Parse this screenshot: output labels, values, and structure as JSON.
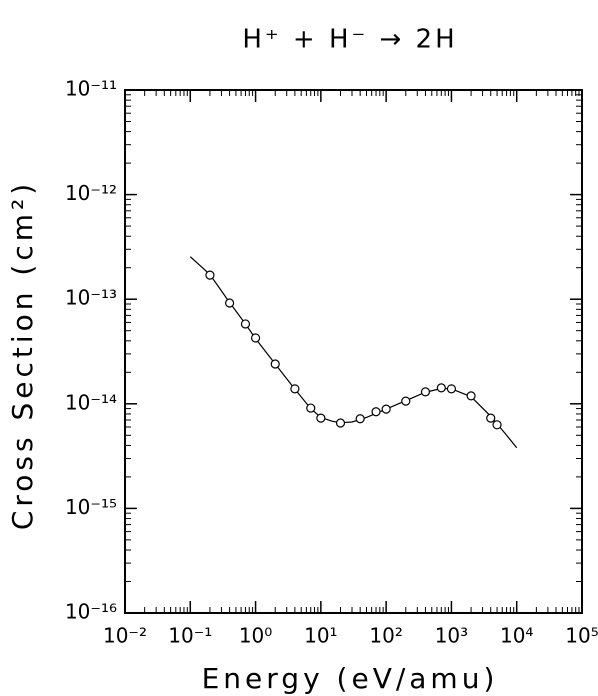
{
  "chart_data": {
    "type": "scatter",
    "title": "H⁺ + H⁻ → 2H",
    "xlabel": "Energy (eV/amu)",
    "ylabel": "Cross Section (cm²)",
    "xscale": "log",
    "yscale": "log",
    "xlim": [
      0.01,
      100000
    ],
    "ylim": [
      1e-16,
      1e-11
    ],
    "xticks": [
      {
        "value": 0.01,
        "label": "10⁻²"
      },
      {
        "value": 0.1,
        "label": "10⁻¹"
      },
      {
        "value": 1,
        "label": "10⁰"
      },
      {
        "value": 10,
        "label": "10¹"
      },
      {
        "value": 100,
        "label": "10²"
      },
      {
        "value": 1000,
        "label": "10³"
      },
      {
        "value": 10000,
        "label": "10⁴"
      },
      {
        "value": 100000,
        "label": "10⁵"
      }
    ],
    "yticks": [
      {
        "value": 1e-16,
        "label": "10⁻¹⁶"
      },
      {
        "value": 1e-15,
        "label": "10⁻¹⁵"
      },
      {
        "value": 1e-14,
        "label": "10⁻¹⁴"
      },
      {
        "value": 1e-13,
        "label": "10⁻¹³"
      },
      {
        "value": 1e-12,
        "label": "10⁻¹²"
      },
      {
        "value": 1e-11,
        "label": "10⁻¹¹"
      }
    ],
    "minor_ticks": true,
    "series": [
      {
        "type": "line",
        "color": "#000000",
        "x": [
          0.1,
          0.2,
          0.4,
          0.7,
          1,
          2,
          4,
          7,
          10,
          15,
          20,
          30,
          50,
          100,
          200,
          400,
          700,
          1000,
          2000,
          4000,
          7000,
          10000
        ],
        "values": [
          2.55e-13,
          1.72e-13,
          9.3e-14,
          5.8e-14,
          4.2e-14,
          2.4e-14,
          1.38e-14,
          9e-15,
          7.4e-15,
          6.8e-15,
          6.6e-15,
          6.7e-15,
          7.4e-15,
          8.9e-15,
          1.07e-14,
          1.29e-14,
          1.4e-14,
          1.39e-14,
          1.17e-14,
          7.6e-15,
          5e-15,
          3.8e-15
        ]
      },
      {
        "type": "scatter",
        "color": "#000000",
        "x": [
          0.2,
          0.4,
          0.7,
          1,
          2,
          4,
          7,
          10,
          20,
          40,
          70,
          100,
          200,
          400,
          700,
          1000,
          2000,
          4000,
          5000
        ],
        "values": [
          1.7e-13,
          9.2e-14,
          5.8e-14,
          4.26e-14,
          2.4e-14,
          1.39e-14,
          9.1e-15,
          7.3e-15,
          6.55e-15,
          7.2e-15,
          8.4e-15,
          8.9e-15,
          1.06e-14,
          1.3e-14,
          1.42e-14,
          1.39e-14,
          1.19e-14,
          7.3e-15,
          6.3e-15
        ]
      }
    ]
  }
}
